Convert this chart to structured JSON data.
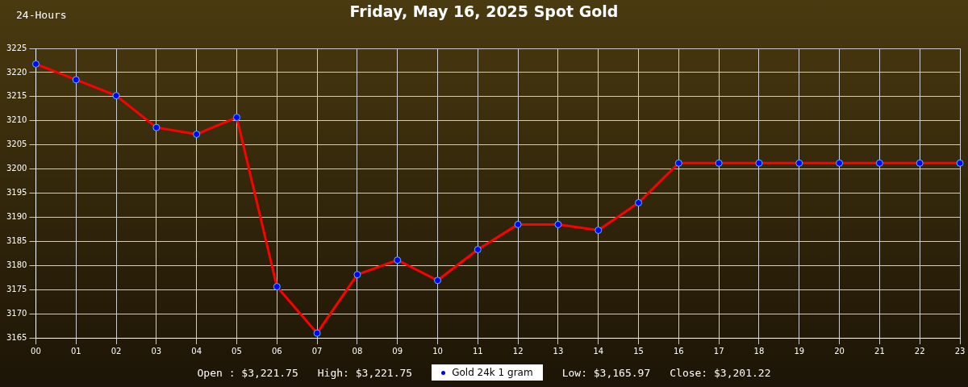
{
  "chart_data": {
    "type": "line",
    "title": "Friday, May 16, 2025 Spot Gold",
    "categories": [
      "00",
      "01",
      "02",
      "03",
      "04",
      "05",
      "06",
      "07",
      "08",
      "09",
      "10",
      "11",
      "12",
      "13",
      "14",
      "15",
      "16",
      "17",
      "18",
      "19",
      "20",
      "21",
      "22",
      "23"
    ],
    "series": [
      {
        "name": "Gold 24k 1 gram",
        "color": "#ff0000",
        "values": [
          3221.75,
          3218.5,
          3215.2,
          3208.6,
          3207.2,
          3210.7,
          3175.6,
          3165.97,
          3178.1,
          3181.1,
          3176.9,
          3183.3,
          3188.5,
          3188.5,
          3187.3,
          3193.0,
          3201.22,
          3201.22,
          3201.22,
          3201.22,
          3201.22,
          3201.22,
          3201.22,
          3201.22
        ]
      }
    ],
    "ylim": [
      3165,
      3225
    ],
    "yticks": [
      3165,
      3170,
      3175,
      3180,
      3185,
      3190,
      3195,
      3200,
      3205,
      3210,
      3215,
      3220,
      3225
    ],
    "grid": true,
    "legend": "bottom",
    "marker": "circle",
    "line_style": "solid",
    "annotations": [
      "24-Hours",
      "Open : $3,221.75",
      "High: $3,221.75",
      "Low: $3,165.97",
      "Close: $3,201.22"
    ]
  }
}
